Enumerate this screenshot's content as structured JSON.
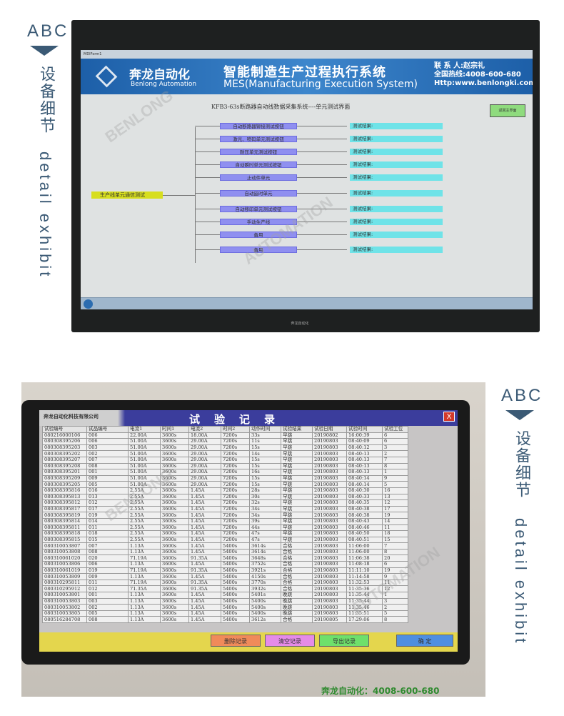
{
  "labels": {
    "abc": "ABC",
    "cn": "设备细节",
    "en": "detail exhibit"
  },
  "screen1": {
    "window_title": "MDIForm1",
    "brand": "奔龙自动化",
    "brand_en": "Benlong Automation",
    "system_title": "智能制造生产过程执行系统",
    "system_title_en": "MES(Manufacturing Execution System)",
    "contact_person": "联 系 人:赵宗礼",
    "hotline": "全国热线:4008-600-680",
    "website": "Http:www.benlongki.com",
    "subtitle": "KFB3-63s断路器自动线数据采集系统----单元测试界面",
    "back_button": "返回主界面",
    "root_node": "生产线单元通信测试",
    "units": [
      "自动断路器铆接测试按钮",
      "激光、喷码单元测试按钮",
      "耐压单元测试按钮",
      "自动瞬时单元测试按钮",
      "止动件单元",
      "自动延时单元",
      "自动移印单元测试按钮",
      "手动生产线",
      "备用",
      "备用"
    ],
    "result_label": "测试结果:",
    "monitor_brand": "奔龙自动化"
  },
  "screen2": {
    "company": "奔龙自动化科技有限公司",
    "title": "试验记录",
    "close": "X",
    "columns": [
      "试验编号",
      "试品编号",
      "电流1",
      "时间1",
      "电流2",
      "时间2",
      "动作时间",
      "试验结果",
      "试验日期",
      "试验时间",
      "试验工位"
    ],
    "rows": [
      [
        "080216000106",
        "006",
        "22.00A",
        "3600s",
        "18.00A",
        "7200s",
        "33s",
        "早跳",
        "20190802",
        "16:00:39",
        "6"
      ],
      [
        "080308395206",
        "006",
        "51.00A",
        "3600s",
        "29.00A",
        "7200s",
        "11s",
        "早跳",
        "20190803",
        "08:40:09",
        "6"
      ],
      [
        "080308395203",
        "003",
        "51.00A",
        "3600s",
        "29.00A",
        "7200s",
        "15s",
        "早跳",
        "20190803",
        "08:40:12",
        "3"
      ],
      [
        "080308395202",
        "002",
        "51.00A",
        "3600s",
        "29.00A",
        "7200s",
        "14s",
        "早跳",
        "20190803",
        "08:40:13",
        "2"
      ],
      [
        "080308395207",
        "007",
        "51.00A",
        "3600s",
        "29.00A",
        "7200s",
        "15s",
        "早跳",
        "20190803",
        "08:40:13",
        "7"
      ],
      [
        "080308395208",
        "008",
        "51.00A",
        "3600s",
        "29.00A",
        "7200s",
        "15s",
        "早跳",
        "20190803",
        "08:40:13",
        "8"
      ],
      [
        "080308395201",
        "001",
        "51.00A",
        "3600s",
        "29.00A",
        "7200s",
        "16s",
        "早跳",
        "20190803",
        "08:40:13",
        "1"
      ],
      [
        "080308395209",
        "009",
        "51.00A",
        "3600s",
        "29.00A",
        "7200s",
        "15s",
        "早跳",
        "20190803",
        "08:40:14",
        "9"
      ],
      [
        "080308395205",
        "005",
        "51.00A",
        "3600s",
        "29.00A",
        "7200s",
        "15s",
        "早跳",
        "20190803",
        "08:40:14",
        "5"
      ],
      [
        "080308395816",
        "016",
        "2.55A",
        "3600s",
        "1.45A",
        "7200s",
        "28s",
        "早跳",
        "20190803",
        "08:40:30",
        "16"
      ],
      [
        "080308395813",
        "013",
        "2.55A",
        "3600s",
        "1.45A",
        "7200s",
        "30s",
        "早跳",
        "20190803",
        "08:40:33",
        "13"
      ],
      [
        "080308395812",
        "012",
        "2.55A",
        "3600s",
        "1.45A",
        "7200s",
        "32s",
        "早跳",
        "20190803",
        "08:40:35",
        "12"
      ],
      [
        "080308395817",
        "017",
        "2.55A",
        "3600s",
        "1.45A",
        "7200s",
        "34s",
        "早跳",
        "20190803",
        "08:40:38",
        "17"
      ],
      [
        "080308395819",
        "019",
        "2.55A",
        "3600s",
        "1.45A",
        "7200s",
        "34s",
        "早跳",
        "20190803",
        "08:40:38",
        "19"
      ],
      [
        "080308395814",
        "014",
        "2.55A",
        "3600s",
        "1.45A",
        "7200s",
        "39s",
        "早跳",
        "20190803",
        "08:40:43",
        "14"
      ],
      [
        "080308395811",
        "011",
        "2.55A",
        "3600s",
        "1.45A",
        "7200s",
        "44s",
        "早跳",
        "20190803",
        "08:40:46",
        "11"
      ],
      [
        "080308395818",
        "018",
        "2.55A",
        "3600s",
        "1.45A",
        "7200s",
        "47s",
        "早跳",
        "20190803",
        "08:40:50",
        "18"
      ],
      [
        "080308395815",
        "015",
        "2.55A",
        "3600s",
        "1.45A",
        "7200s",
        "47s",
        "早跳",
        "20190803",
        "08:40:51",
        "15"
      ],
      [
        "080310053807",
        "007",
        "1.13A",
        "3600s",
        "1.45A",
        "5400s",
        "3614s",
        "合格",
        "20190803",
        "11:06:00",
        "7"
      ],
      [
        "080310053808",
        "008",
        "1.13A",
        "3600s",
        "1.45A",
        "5400s",
        "3614s",
        "合格",
        "20190803",
        "11:06:00",
        "8"
      ],
      [
        "080310061020",
        "020",
        "71.19A",
        "3600s",
        "91.35A",
        "5400s",
        "3648s",
        "合格",
        "20190803",
        "11:06:38",
        "20"
      ],
      [
        "080310053806",
        "006",
        "1.13A",
        "3600s",
        "1.45A",
        "5400s",
        "3752s",
        "合格",
        "20190803",
        "11:08:18",
        "6"
      ],
      [
        "080310061019",
        "019",
        "71.19A",
        "3600s",
        "91.35A",
        "5400s",
        "3921s",
        "合格",
        "20190803",
        "11:11:10",
        "19"
      ],
      [
        "080310053809",
        "009",
        "1.13A",
        "3600s",
        "1.45A",
        "5400s",
        "4150s",
        "合格",
        "20190803",
        "11:14:58",
        "9"
      ],
      [
        "080310295811",
        "011",
        "71.19A",
        "3600s",
        "91.35A",
        "5400s",
        "3770s",
        "合格",
        "20190803",
        "11:32:53",
        "11"
      ],
      [
        "080310295912",
        "012",
        "71.35A",
        "3600s",
        "91.35A",
        "5400s",
        "3932s",
        "合格",
        "20190803",
        "11:35:36",
        "12"
      ],
      [
        "080310053801",
        "001",
        "1.13A",
        "3600s",
        "1.45A",
        "5400s",
        "5401s",
        "晚跳",
        "20190803",
        "11:35:44",
        "1"
      ],
      [
        "080310053803",
        "003",
        "1.13A",
        "3600s",
        "1.45A",
        "5400s",
        "5400s",
        "晚跳",
        "20190803",
        "11:35:44",
        "3"
      ],
      [
        "080310053802",
        "002",
        "1.13A",
        "3600s",
        "1.45A",
        "5400s",
        "5400s",
        "晚跳",
        "20190803",
        "11:35:46",
        "2"
      ],
      [
        "080310053805",
        "005",
        "1.13A",
        "3600s",
        "1.45A",
        "5400s",
        "5400s",
        "晚跳",
        "20190803",
        "11:35:51",
        "5"
      ],
      [
        "080516284708",
        "008",
        "1.13A",
        "3600s",
        "1.45A",
        "5400s",
        "3612s",
        "合格",
        "20190805",
        "17:29:06",
        "8"
      ]
    ],
    "buttons": {
      "delete": "删除记录",
      "clear": "清空记录",
      "export": "导出记录",
      "ok": "确  定"
    },
    "button_colors": {
      "delete": "#f08a5a",
      "clear": "#e58be8",
      "export": "#6ee06b",
      "ok": "#4f8fe0"
    },
    "monitor_brand": "奔龙自动化"
  },
  "footer": "奔龙自动化：4008-600-680"
}
